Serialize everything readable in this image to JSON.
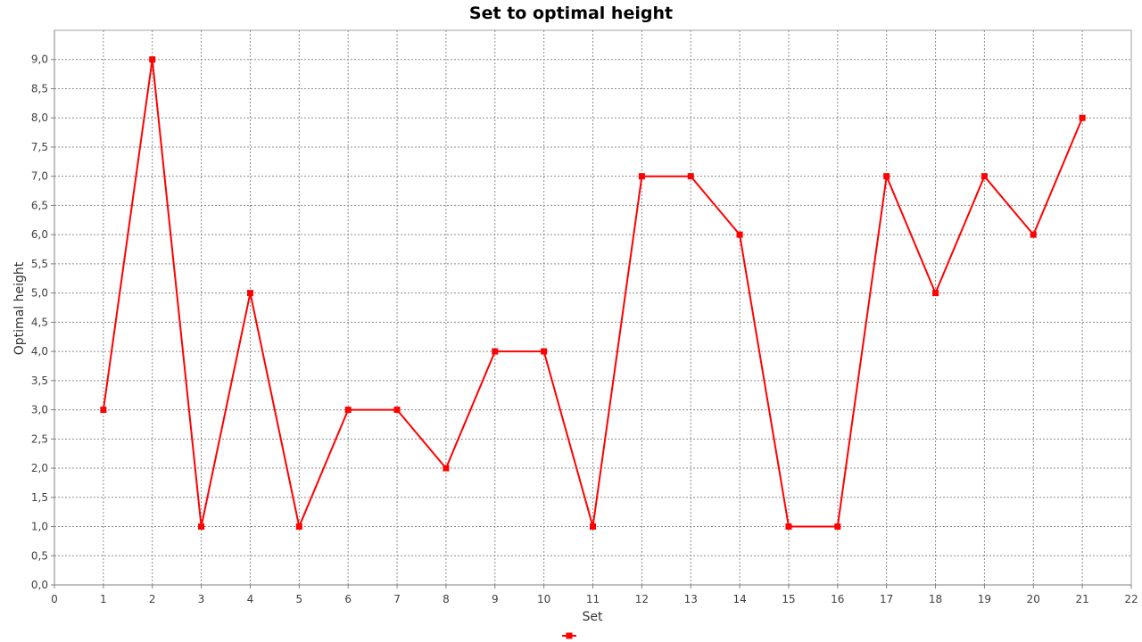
{
  "chart_data": {
    "type": "line",
    "title": "Set to optimal height",
    "xlabel": "Set",
    "ylabel": "Optimal height",
    "xlim": [
      0,
      22
    ],
    "ylim": [
      0,
      9.5
    ],
    "x_ticks": [
      "0",
      "1",
      "2",
      "3",
      "4",
      "5",
      "6",
      "7",
      "8",
      "9",
      "10",
      "11",
      "12",
      "13",
      "14",
      "15",
      "16",
      "17",
      "18",
      "19",
      "20",
      "21",
      "22"
    ],
    "y_ticks": [
      "0,0",
      "0,5",
      "1,0",
      "1,5",
      "2,0",
      "2,5",
      "3,0",
      "3,5",
      "4,0",
      "4,5",
      "5,0",
      "5,5",
      "6,0",
      "6,5",
      "7,0",
      "7,5",
      "8,0",
      "8,5",
      "9,0"
    ],
    "grid": true,
    "legend_position": "bottom-center",
    "series": [
      {
        "color": "#ff0000",
        "marker": "square",
        "x": [
          1,
          2,
          3,
          4,
          5,
          6,
          7,
          8,
          9,
          10,
          11,
          12,
          13,
          14,
          15,
          16,
          17,
          18,
          19,
          20,
          21
        ],
        "y": [
          3,
          9,
          1,
          5,
          1,
          3,
          3,
          2,
          4,
          4,
          1,
          7,
          7,
          6,
          1,
          1,
          7,
          5,
          7,
          6,
          8
        ]
      }
    ]
  }
}
